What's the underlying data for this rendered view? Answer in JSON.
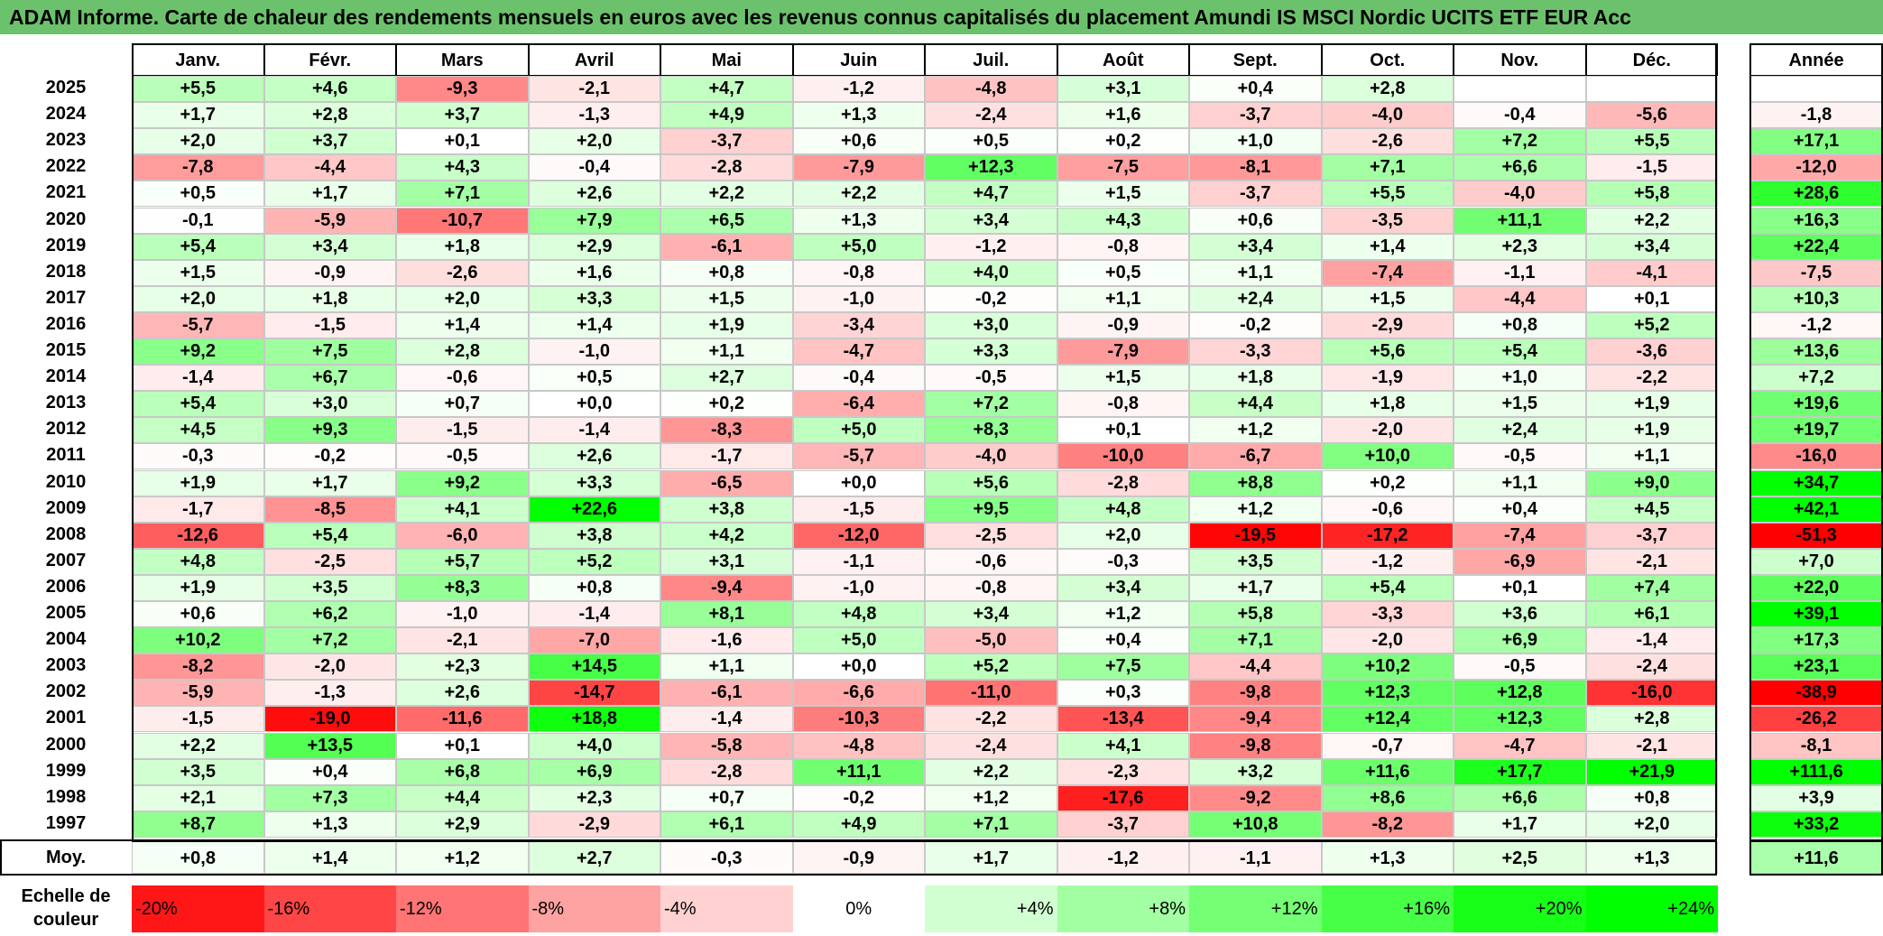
{
  "title": "ADAM Informe. Carte de chaleur des rendements mensuels en euros avec les revenus connus capitalisés du placement Amundi IS MSCI Nordic UCITS ETF EUR Acc",
  "chart_data": {
    "type": "heatmap",
    "title": "ADAM Informe. Carte de chaleur des rendements mensuels en euros avec les revenus connus capitalisés du placement Amundi IS MSCI Nordic UCITS ETF EUR Acc",
    "columns": [
      "Janv.",
      "Févr.",
      "Mars",
      "Avril",
      "Mai",
      "Juin",
      "Juil.",
      "Août",
      "Sept.",
      "Oct.",
      "Nov.",
      "Déc."
    ],
    "year_header": "Année",
    "rows": [
      {
        "year": "2025",
        "months": [
          "+5,5",
          "+4,6",
          "-9,3",
          "-2,1",
          "+4,7",
          "-1,2",
          "-4,8",
          "+3,1",
          "+0,4",
          "+2,8",
          "",
          ""
        ],
        "annual": ""
      },
      {
        "year": "2024",
        "months": [
          "+1,7",
          "+2,8",
          "+3,7",
          "-1,3",
          "+4,9",
          "+1,3",
          "-2,4",
          "+1,6",
          "-3,7",
          "-4,0",
          "-0,4",
          "-5,6"
        ],
        "annual": "-1,8"
      },
      {
        "year": "2023",
        "months": [
          "+2,0",
          "+3,7",
          "+0,1",
          "+2,0",
          "-3,7",
          "+0,6",
          "+0,5",
          "+0,2",
          "+1,0",
          "-2,6",
          "+7,2",
          "+5,5"
        ],
        "annual": "+17,1"
      },
      {
        "year": "2022",
        "months": [
          "-7,8",
          "-4,4",
          "+4,3",
          "-0,4",
          "-2,8",
          "-7,9",
          "+12,3",
          "-7,5",
          "-8,1",
          "+7,1",
          "+6,6",
          "-1,5"
        ],
        "annual": "-12,0"
      },
      {
        "year": "2021",
        "months": [
          "+0,5",
          "+1,7",
          "+7,1",
          "+2,6",
          "+2,2",
          "+2,2",
          "+4,7",
          "+1,5",
          "-3,7",
          "+5,5",
          "-4,0",
          "+5,8"
        ],
        "annual": "+28,6"
      },
      {
        "year": "2020",
        "months": [
          "-0,1",
          "-5,9",
          "-10,7",
          "+7,9",
          "+6,5",
          "+1,3",
          "+3,4",
          "+4,3",
          "+0,6",
          "-3,5",
          "+11,1",
          "+2,2"
        ],
        "annual": "+16,3"
      },
      {
        "year": "2019",
        "months": [
          "+5,4",
          "+3,4",
          "+1,8",
          "+2,9",
          "-6,1",
          "+5,0",
          "-1,2",
          "-0,8",
          "+3,4",
          "+1,4",
          "+2,3",
          "+3,4"
        ],
        "annual": "+22,4"
      },
      {
        "year": "2018",
        "months": [
          "+1,5",
          "-0,9",
          "-2,6",
          "+1,6",
          "+0,8",
          "-0,8",
          "+4,0",
          "+0,5",
          "+1,1",
          "-7,4",
          "-1,1",
          "-4,1"
        ],
        "annual": "-7,5"
      },
      {
        "year": "2017",
        "months": [
          "+2,0",
          "+1,8",
          "+2,0",
          "+3,3",
          "+1,5",
          "-1,0",
          "-0,2",
          "+1,1",
          "+2,4",
          "+1,5",
          "-4,4",
          "+0,1"
        ],
        "annual": "+10,3"
      },
      {
        "year": "2016",
        "months": [
          "-5,7",
          "-1,5",
          "+1,4",
          "+1,4",
          "+1,9",
          "-3,4",
          "+3,0",
          "-0,9",
          "-0,2",
          "-2,9",
          "+0,8",
          "+5,2"
        ],
        "annual": "-1,2"
      },
      {
        "year": "2015",
        "months": [
          "+9,2",
          "+7,5",
          "+2,8",
          "-1,0",
          "+1,1",
          "-4,7",
          "+3,3",
          "-7,9",
          "-3,3",
          "+5,6",
          "+5,4",
          "-3,6"
        ],
        "annual": "+13,6"
      },
      {
        "year": "2014",
        "months": [
          "-1,4",
          "+6,7",
          "-0,6",
          "+0,5",
          "+2,7",
          "-0,4",
          "-0,5",
          "+1,5",
          "+1,8",
          "-1,9",
          "+1,0",
          "-2,2"
        ],
        "annual": "+7,2"
      },
      {
        "year": "2013",
        "months": [
          "+5,4",
          "+3,0",
          "+0,7",
          "+0,0",
          "+0,2",
          "-6,4",
          "+7,2",
          "-0,8",
          "+4,4",
          "+1,8",
          "+1,5",
          "+1,9"
        ],
        "annual": "+19,6"
      },
      {
        "year": "2012",
        "months": [
          "+4,5",
          "+9,3",
          "-1,5",
          "-1,4",
          "-8,3",
          "+5,0",
          "+8,3",
          "+0,1",
          "+1,2",
          "-2,0",
          "+2,4",
          "+1,9"
        ],
        "annual": "+19,7"
      },
      {
        "year": "2011",
        "months": [
          "-0,3",
          "-0,2",
          "-0,5",
          "+2,6",
          "-1,7",
          "-5,7",
          "-4,0",
          "-10,0",
          "-6,7",
          "+10,0",
          "-0,5",
          "+1,1"
        ],
        "annual": "-16,0"
      },
      {
        "year": "2010",
        "months": [
          "+1,9",
          "+1,7",
          "+9,2",
          "+3,3",
          "-6,5",
          "+0,0",
          "+5,6",
          "-2,8",
          "+8,8",
          "+0,2",
          "+1,1",
          "+9,0"
        ],
        "annual": "+34,7"
      },
      {
        "year": "2009",
        "months": [
          "-1,7",
          "-8,5",
          "+4,1",
          "+22,6",
          "+3,8",
          "-1,5",
          "+9,5",
          "+4,8",
          "+1,2",
          "-0,6",
          "+0,4",
          "+4,5"
        ],
        "annual": "+42,1"
      },
      {
        "year": "2008",
        "months": [
          "-12,6",
          "+5,4",
          "-6,0",
          "+3,8",
          "+4,2",
          "-12,0",
          "-2,5",
          "+2,0",
          "-19,5",
          "-17,2",
          "-7,4",
          "-3,7"
        ],
        "annual": "-51,3"
      },
      {
        "year": "2007",
        "months": [
          "+4,8",
          "-2,5",
          "+5,7",
          "+5,2",
          "+3,1",
          "-1,1",
          "-0,6",
          "-0,3",
          "+3,5",
          "-1,2",
          "-6,9",
          "-2,1"
        ],
        "annual": "+7,0"
      },
      {
        "year": "2006",
        "months": [
          "+1,9",
          "+3,5",
          "+8,3",
          "+0,8",
          "-9,4",
          "-1,0",
          "-0,8",
          "+3,4",
          "+1,7",
          "+5,4",
          "+0,1",
          "+7,4"
        ],
        "annual": "+22,0"
      },
      {
        "year": "2005",
        "months": [
          "+0,6",
          "+6,2",
          "-1,0",
          "-1,4",
          "+8,1",
          "+4,8",
          "+3,4",
          "+1,2",
          "+5,8",
          "-3,3",
          "+3,6",
          "+6,1"
        ],
        "annual": "+39,1"
      },
      {
        "year": "2004",
        "months": [
          "+10,2",
          "+7,2",
          "-2,1",
          "-7,0",
          "-1,6",
          "+5,0",
          "-5,0",
          "+0,4",
          "+7,1",
          "-2,0",
          "+6,9",
          "-1,4"
        ],
        "annual": "+17,3"
      },
      {
        "year": "2003",
        "months": [
          "-8,2",
          "-2,0",
          "+2,3",
          "+14,5",
          "+1,1",
          "+0,0",
          "+5,2",
          "+7,5",
          "-4,4",
          "+10,2",
          "-0,5",
          "-2,4"
        ],
        "annual": "+23,1"
      },
      {
        "year": "2002",
        "months": [
          "-5,9",
          "-1,3",
          "+2,6",
          "-14,7",
          "-6,1",
          "-6,6",
          "-11,0",
          "+0,3",
          "-9,8",
          "+12,3",
          "+12,8",
          "-16,0"
        ],
        "annual": "-38,9"
      },
      {
        "year": "2001",
        "months": [
          "-1,5",
          "-19,0",
          "-11,6",
          "+18,8",
          "-1,4",
          "-10,3",
          "-2,2",
          "-13,4",
          "-9,4",
          "+12,4",
          "+12,3",
          "+2,8"
        ],
        "annual": "-26,2"
      },
      {
        "year": "2000",
        "months": [
          "+2,2",
          "+13,5",
          "+0,1",
          "+4,0",
          "-5,8",
          "-4,8",
          "-2,4",
          "+4,1",
          "-9,8",
          "-0,7",
          "-4,7",
          "-2,1"
        ],
        "annual": "-8,1"
      },
      {
        "year": "1999",
        "months": [
          "+3,5",
          "+0,4",
          "+6,8",
          "+6,9",
          "-2,8",
          "+11,1",
          "+2,2",
          "-2,3",
          "+3,2",
          "+11,6",
          "+17,7",
          "+21,9"
        ],
        "annual": "+111,6"
      },
      {
        "year": "1998",
        "months": [
          "+2,1",
          "+7,3",
          "+4,4",
          "+2,3",
          "+0,7",
          "-0,2",
          "+1,2",
          "-17,6",
          "-9,2",
          "+8,6",
          "+6,6",
          "+0,8"
        ],
        "annual": "+3,9"
      },
      {
        "year": "1997",
        "months": [
          "+8,7",
          "+1,3",
          "+2,9",
          "-2,9",
          "+6,1",
          "+4,9",
          "+7,1",
          "-3,7",
          "+10,8",
          "-8,2",
          "+1,7",
          "+2,0"
        ],
        "annual": "+33,2"
      }
    ],
    "average": {
      "label": "Moy.",
      "months": [
        "+0,8",
        "+1,4",
        "+1,2",
        "+2,7",
        "-0,3",
        "-0,9",
        "+1,7",
        "-1,2",
        "-1,1",
        "+1,3",
        "+2,5",
        "+1,3"
      ],
      "annual": "+11,6"
    },
    "color_scale": {
      "label": "Echelle de couleur",
      "stops": [
        "-20%",
        "-16%",
        "-12%",
        "-8%",
        "-4%",
        "0%",
        "+4%",
        "+8%",
        "+12%",
        "+16%",
        "+20%",
        "+24%"
      ]
    },
    "colors": {
      "negative_max": "#ff0000",
      "neutral": "#ffffff",
      "positive_max": "#00ff00",
      "title_bg": "#6cc26c"
    }
  }
}
